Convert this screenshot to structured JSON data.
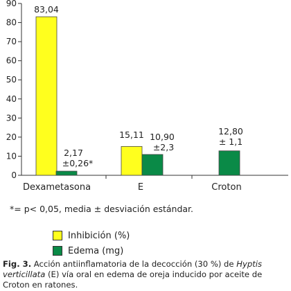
{
  "chart_data": {
    "type": "bar",
    "categories": [
      "Dexametasona",
      "E",
      "Croton"
    ],
    "series": [
      {
        "name": "Inhibición (%)",
        "color": "#ffff1e",
        "values": [
          83.04,
          15.11,
          null
        ]
      },
      {
        "name": "Edema (mg)",
        "color": "#0a8a47",
        "values": [
          2.17,
          10.9,
          12.8
        ]
      }
    ],
    "data_labels": {
      "inhibicion": [
        "83,04",
        "15,11",
        ""
      ],
      "edema": [
        [
          "2,17",
          "±0,26*"
        ],
        [
          "10,90",
          "±2,3"
        ],
        [
          "12,80",
          "± 1,1"
        ]
      ]
    },
    "ylim": [
      0,
      90
    ],
    "yticks": [
      0,
      10,
      20,
      30,
      40,
      50,
      60,
      70,
      80,
      90
    ],
    "ytick_labels": [
      "0",
      "10",
      "20",
      "30",
      "40",
      "50",
      "60",
      "70",
      "80",
      "90"
    ],
    "grid": false,
    "legend_placement": "bottom-left"
  },
  "footnote": "*= p< 0,05, media ± desviación estándar.",
  "legend": {
    "items": [
      {
        "label": "Inhibición (%)",
        "color": "#ffff1e"
      },
      {
        "label": "Edema (mg)",
        "color": "#0a8a47"
      }
    ]
  },
  "caption": {
    "fig": "Fig. 3.",
    "text1": " Acción antiinflamatoria de la decocción (30 %) de ",
    "sci": "Hyptis verticillata",
    "text2": " (E) vía oral en edema de oreja inducido por aceite de Croton en ratones."
  }
}
